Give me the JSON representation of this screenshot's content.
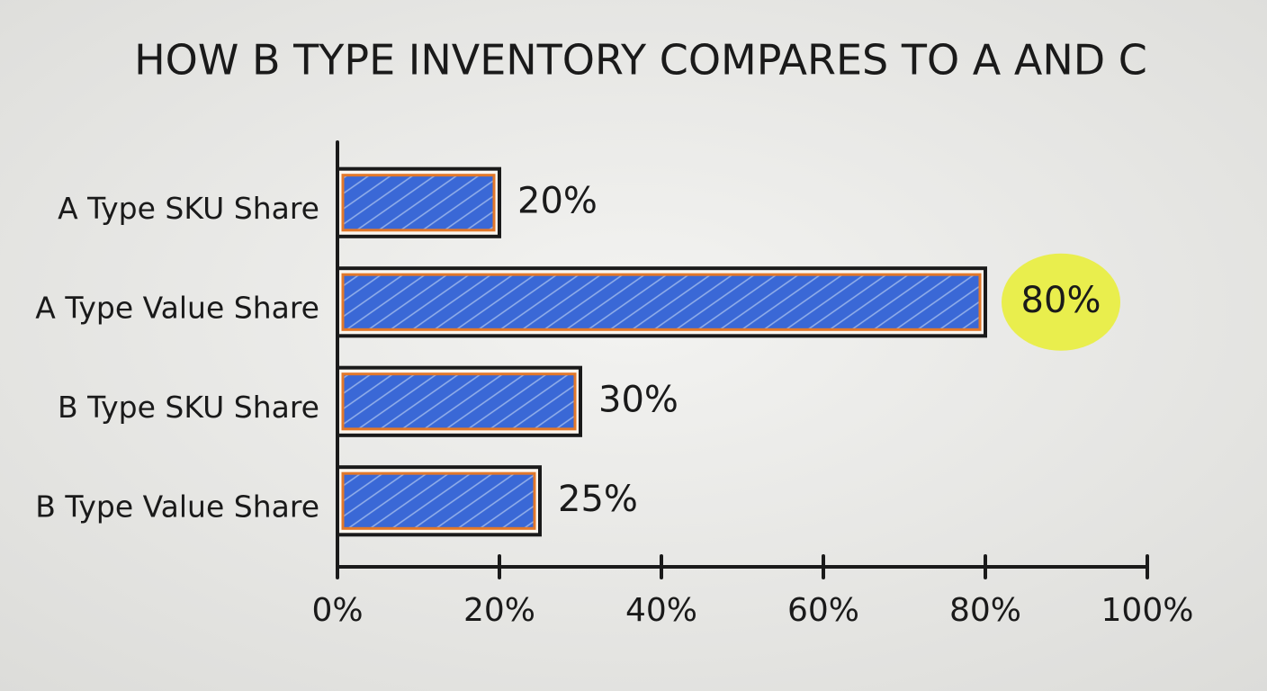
{
  "chart_data": {
    "type": "barh",
    "title": "HOW B TYPE INVENTORY COMPARES TO A AND C",
    "categories": [
      "A Type SKU Share",
      "A Type Value Share",
      "B Type SKU Share",
      "B Type Value Share"
    ],
    "values": [
      20,
      80,
      30,
      25
    ],
    "value_labels": [
      "20%",
      "80%",
      "30%",
      "25%"
    ],
    "color": "#2f5ed0",
    "edge_color": "#e2782a",
    "highlight_color": "#e9ee3c",
    "xlim": [
      0,
      100
    ],
    "xticks": [
      {
        "value": 0,
        "label": "0%"
      },
      {
        "value": 20,
        "label": "20%"
      },
      {
        "value": 40,
        "label": "40%"
      },
      {
        "value": 60,
        "label": "60%"
      },
      {
        "value": 80,
        "label": "80%"
      },
      {
        "value": 100,
        "label": "100%"
      }
    ]
  }
}
